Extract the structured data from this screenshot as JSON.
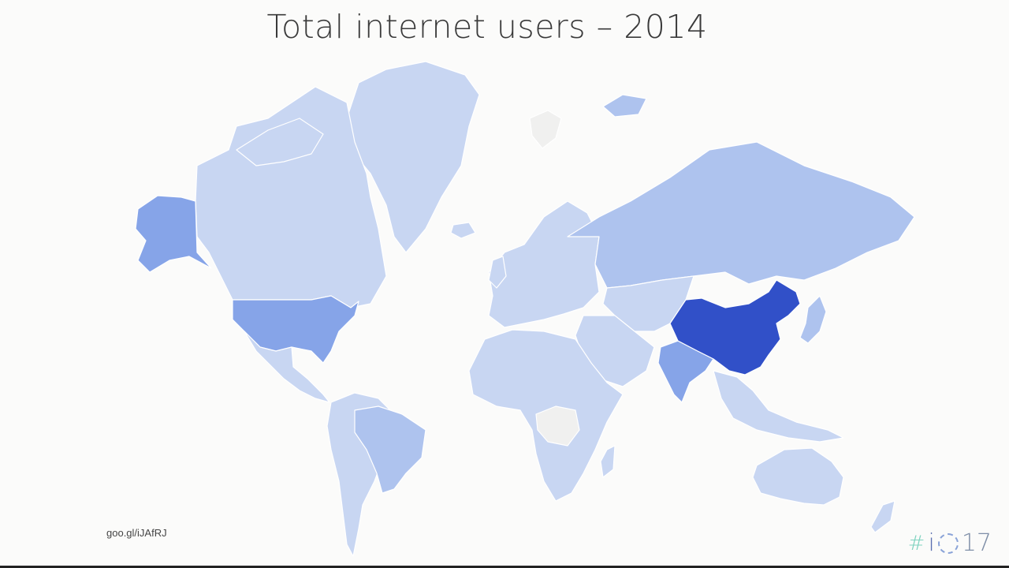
{
  "title": "Total internet users – 2014",
  "source_link": "goo.gl/iJAfRJ",
  "event_logo": "#io17",
  "colors": {
    "background": "#fbfbfa",
    "level_1": "#c8d6f2",
    "level_2": "#aec3ee",
    "level_3": "#86a4e8",
    "level_4": "#3150c8",
    "no_data": "#f0f0ef",
    "border": "#ffffff"
  },
  "regions": [
    {
      "name": "China",
      "level": 4
    },
    {
      "name": "United States",
      "level": 3
    },
    {
      "name": "India",
      "level": 3
    },
    {
      "name": "Alaska",
      "level": 3
    },
    {
      "name": "Brazil",
      "level": 2
    },
    {
      "name": "Russia",
      "level": 2
    },
    {
      "name": "Japan",
      "level": 2
    },
    {
      "name": "Canada",
      "level": 1
    },
    {
      "name": "Greenland",
      "level": 1
    },
    {
      "name": "Europe",
      "level": 1
    },
    {
      "name": "Africa",
      "level": 1
    },
    {
      "name": "Australia",
      "level": 1
    },
    {
      "name": "South America",
      "level": 1
    },
    {
      "name": "Central Asia",
      "level": 1
    },
    {
      "name": "Middle East",
      "level": 1
    },
    {
      "name": "Southeast Asia",
      "level": 1
    },
    {
      "name": "DR Congo",
      "level": 0
    },
    {
      "name": "Svalbard",
      "level": 0
    }
  ]
}
